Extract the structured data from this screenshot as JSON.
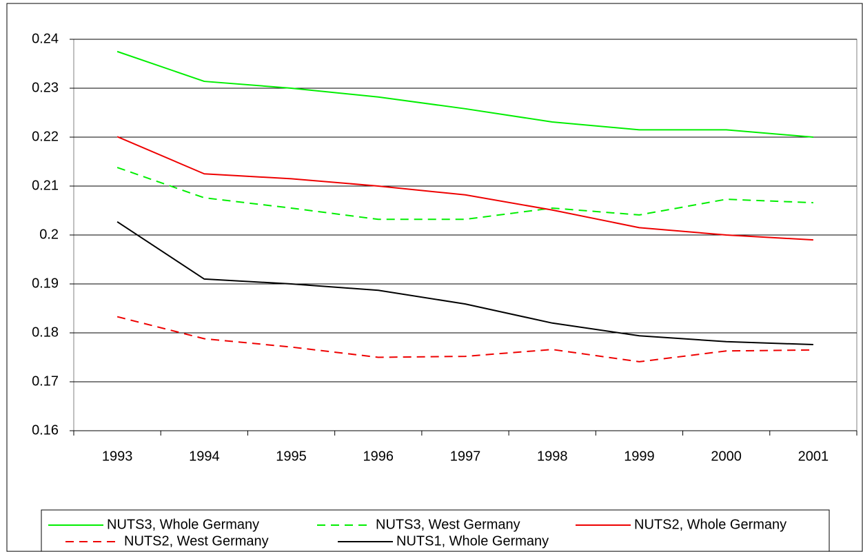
{
  "chart_data": {
    "type": "line",
    "categories": [
      "1993",
      "1994",
      "1995",
      "1996",
      "1997",
      "1998",
      "1999",
      "2000",
      "2001"
    ],
    "series": [
      {
        "name": "NUTS3, Whole Germany",
        "color": "#00ee00",
        "dash": false,
        "values": [
          0.2375,
          0.2314,
          0.23,
          0.2282,
          0.2258,
          0.2231,
          0.2215,
          0.2215,
          0.22
        ]
      },
      {
        "name": "NUTS3, West Germany",
        "color": "#00ee00",
        "dash": true,
        "values": [
          0.2138,
          0.2076,
          0.2055,
          0.2032,
          0.2032,
          0.2055,
          0.2041,
          0.2073,
          0.2066
        ]
      },
      {
        "name": "NUTS2, Whole Germany",
        "color": "#ee0000",
        "dash": false,
        "values": [
          0.2201,
          0.2125,
          0.2115,
          0.21,
          0.2082,
          0.2051,
          0.2015,
          0.2,
          0.199
        ]
      },
      {
        "name": "NUTS2, West Germany",
        "color": "#ee0000",
        "dash": true,
        "values": [
          0.1833,
          0.1788,
          0.1771,
          0.175,
          0.1752,
          0.1766,
          0.1741,
          0.1763,
          0.1765
        ]
      },
      {
        "name": "NUTS1, Whole Germany",
        "color": "#000000",
        "dash": false,
        "values": [
          0.2027,
          0.191,
          0.19,
          0.1887,
          0.1859,
          0.182,
          0.1794,
          0.1782,
          0.1776
        ]
      }
    ],
    "ylim": [
      0.16,
      0.24
    ],
    "yticks": [
      0.16,
      0.17,
      0.18,
      0.19,
      0.2,
      0.21,
      0.22,
      0.23,
      0.24
    ],
    "grid": true,
    "legend": "bottom"
  }
}
